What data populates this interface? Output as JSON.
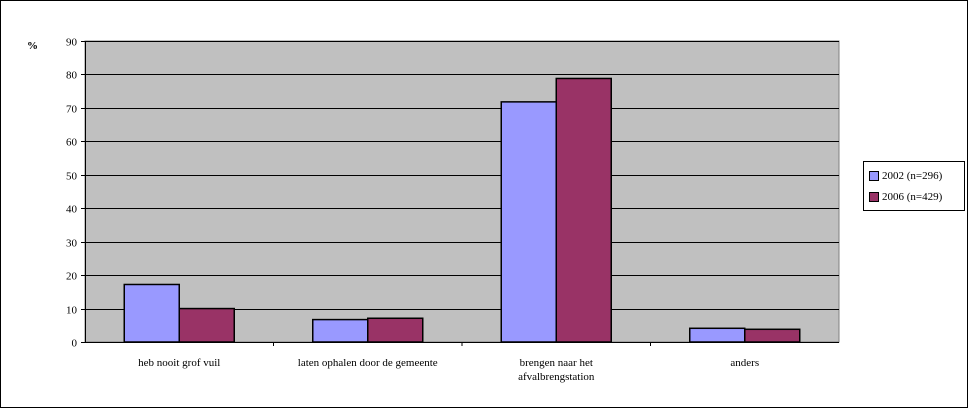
{
  "chart_data": {
    "type": "bar",
    "ylabel": "%",
    "ylim": [
      0,
      90
    ],
    "yticks": [
      0,
      10,
      20,
      30,
      40,
      50,
      60,
      70,
      80,
      90
    ],
    "grid": true,
    "legend_position": "right",
    "categories": [
      [
        "heb nooit grof vuil"
      ],
      [
        "laten ophalen door de gemeente"
      ],
      [
        "brengen naar het",
        "afvalbrengstation"
      ],
      [
        "anders"
      ]
    ],
    "series": [
      {
        "name": "2002 (n=296)",
        "color": "#9999ff",
        "values": [
          17.2,
          6.7,
          71.8,
          4.1
        ]
      },
      {
        "name": "2006 (n=429)",
        "color": "#993366",
        "values": [
          10.0,
          7.1,
          78.8,
          3.8
        ]
      }
    ],
    "plot_background": "#c0c0c0"
  }
}
